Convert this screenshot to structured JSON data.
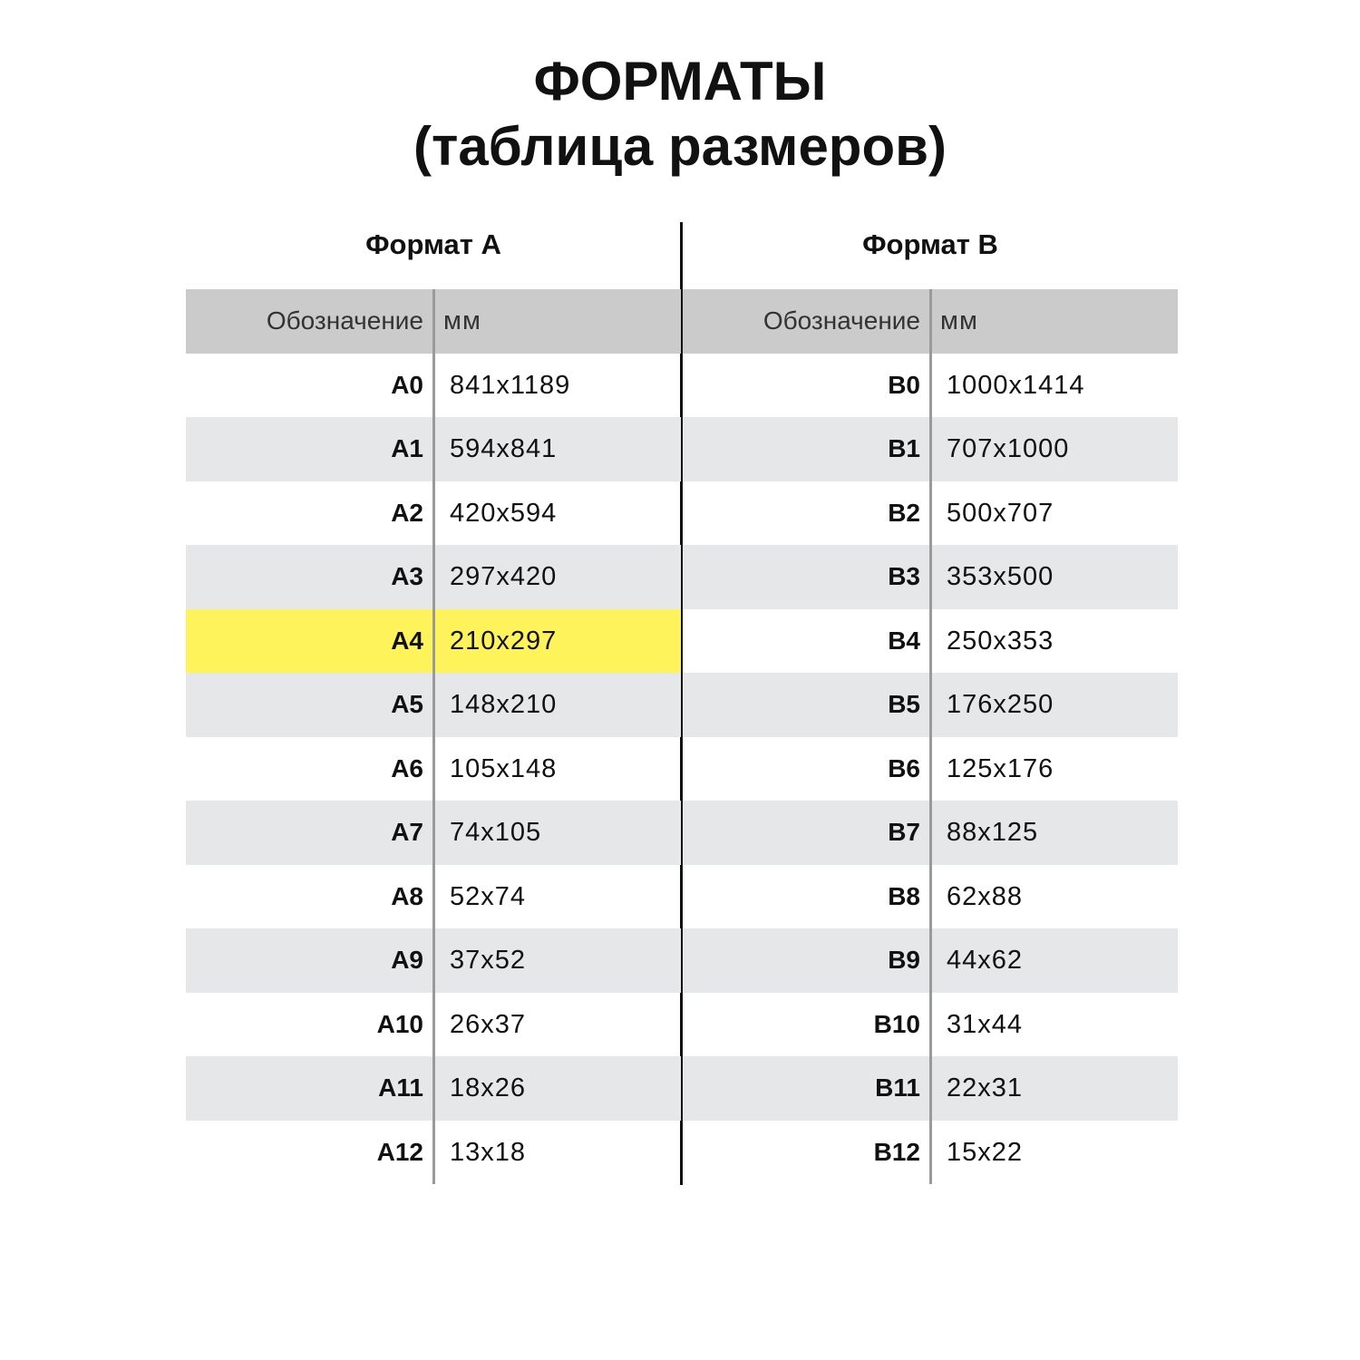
{
  "title": {
    "line1": "ФОРМАТЫ",
    "line2": "(таблица размеров)"
  },
  "highlight_color": "#fff35c",
  "tables": [
    {
      "title": "Формат А",
      "headers": {
        "designation": "Обозначение",
        "size": "мм"
      },
      "highlighted": "A4",
      "rows": [
        {
          "name": "A0",
          "mm": "841x1189"
        },
        {
          "name": "A1",
          "mm": "594x841"
        },
        {
          "name": "A2",
          "mm": "420x594"
        },
        {
          "name": "A3",
          "mm": "297x420"
        },
        {
          "name": "A4",
          "mm": "210x297"
        },
        {
          "name": "A5",
          "mm": "148x210"
        },
        {
          "name": "A6",
          "mm": "105x148"
        },
        {
          "name": "A7",
          "mm": "74x105"
        },
        {
          "name": "A8",
          "mm": "52x74"
        },
        {
          "name": "A9",
          "mm": "37x52"
        },
        {
          "name": "A10",
          "mm": "26x37"
        },
        {
          "name": "A11",
          "mm": "18x26"
        },
        {
          "name": "A12",
          "mm": "13x18"
        }
      ]
    },
    {
      "title": "Формат В",
      "headers": {
        "designation": "Обозначение",
        "size": "мм"
      },
      "highlighted": null,
      "rows": [
        {
          "name": "B0",
          "mm": "1000x1414"
        },
        {
          "name": "B1",
          "mm": "707x1000"
        },
        {
          "name": "B2",
          "mm": "500x707"
        },
        {
          "name": "B3",
          "mm": "353x500"
        },
        {
          "name": "B4",
          "mm": "250x353"
        },
        {
          "name": "B5",
          "mm": "176x250"
        },
        {
          "name": "B6",
          "mm": "125x176"
        },
        {
          "name": "B7",
          "mm": "88x125"
        },
        {
          "name": "B8",
          "mm": "62x88"
        },
        {
          "name": "B9",
          "mm": "44x62"
        },
        {
          "name": "B10",
          "mm": "31x44"
        },
        {
          "name": "B11",
          "mm": "22x31"
        },
        {
          "name": "B12",
          "mm": "15x22"
        }
      ]
    }
  ]
}
